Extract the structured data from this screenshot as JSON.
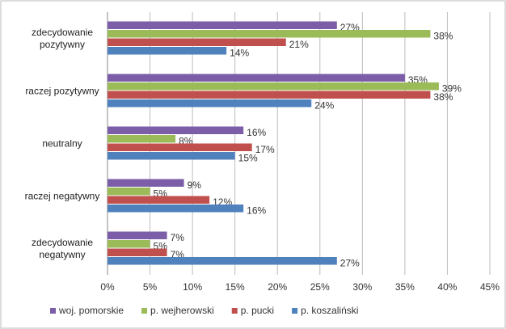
{
  "chart_data": {
    "type": "hbar",
    "categories": [
      "zdecydowanie pozytywny",
      "raczej pozytywny",
      "neutralny",
      "raczej negatywny",
      "zdecydowanie negatywny"
    ],
    "series": [
      {
        "name": "woj. pomorskie",
        "color": "#7b5ea7",
        "values": [
          27,
          35,
          16,
          9,
          7
        ],
        "value_labels": [
          "27%",
          "35%",
          "16%",
          "9%",
          "7%"
        ]
      },
      {
        "name": "p. wejherowski",
        "color": "#9bbb59",
        "values": [
          38,
          39,
          8,
          5,
          5
        ],
        "value_labels": [
          "38%",
          "39%",
          "8%",
          "5%",
          "5%"
        ]
      },
      {
        "name": "p. pucki",
        "color": "#c0504d",
        "values": [
          21,
          38,
          17,
          12,
          7
        ],
        "value_labels": [
          "21%",
          "38%",
          "17%",
          "12%",
          "7%"
        ]
      },
      {
        "name": "p. koszaliński",
        "color": "#4f81bd",
        "values": [
          14,
          24,
          15,
          16,
          27
        ],
        "value_labels": [
          "14%",
          "24%",
          "15%",
          "16%",
          "27%"
        ]
      }
    ],
    "xlim": [
      0,
      45
    ],
    "xticks": [
      {
        "value": 0,
        "label": "0%"
      },
      {
        "value": 5,
        "label": "5%"
      },
      {
        "value": 10,
        "label": "10%"
      },
      {
        "value": 15,
        "label": "15%"
      },
      {
        "value": 20,
        "label": "20%"
      },
      {
        "value": 25,
        "label": "25%"
      },
      {
        "value": 30,
        "label": "30%"
      },
      {
        "value": 35,
        "label": "35%"
      },
      {
        "value": 40,
        "label": "40%"
      },
      {
        "value": 45,
        "label": "45%"
      }
    ],
    "grid": true,
    "legend": "bottom"
  }
}
